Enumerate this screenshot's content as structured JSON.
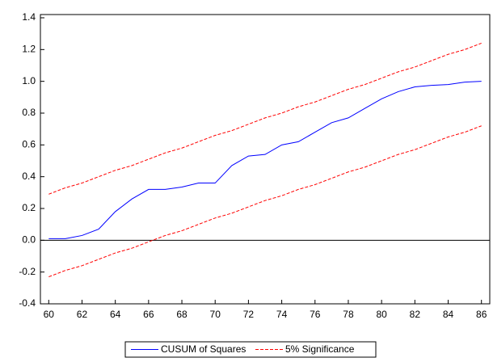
{
  "chart_data": {
    "type": "line",
    "x": [
      60,
      61,
      62,
      63,
      64,
      65,
      66,
      67,
      68,
      69,
      70,
      71,
      72,
      73,
      74,
      75,
      76,
      77,
      78,
      79,
      80,
      81,
      82,
      83,
      84,
      85,
      86
    ],
    "series": [
      {
        "name": "CUSUM of Squares",
        "color": "#0000ff",
        "values": [
          0.01,
          0.01,
          0.03,
          0.07,
          0.18,
          0.26,
          0.32,
          0.32,
          0.335,
          0.36,
          0.36,
          0.47,
          0.53,
          0.54,
          0.6,
          0.62,
          0.68,
          0.74,
          0.77,
          0.83,
          0.89,
          0.935,
          0.965,
          0.975,
          0.98,
          0.995,
          1.0
        ]
      }
    ],
    "bands": {
      "name": "5% Significance",
      "color": "#ff0000",
      "upper": [
        0.29,
        0.33,
        0.36,
        0.4,
        0.44,
        0.47,
        0.51,
        0.55,
        0.58,
        0.62,
        0.66,
        0.69,
        0.73,
        0.77,
        0.8,
        0.84,
        0.87,
        0.91,
        0.95,
        0.98,
        1.02,
        1.06,
        1.09,
        1.13,
        1.17,
        1.2,
        1.24
      ],
      "lower": [
        -0.23,
        -0.19,
        -0.16,
        -0.12,
        -0.08,
        -0.05,
        -0.01,
        0.03,
        0.06,
        0.1,
        0.14,
        0.17,
        0.21,
        0.25,
        0.28,
        0.32,
        0.35,
        0.39,
        0.43,
        0.46,
        0.5,
        0.54,
        0.57,
        0.61,
        0.65,
        0.68,
        0.72
      ]
    },
    "xlim": [
      59.5,
      86.5
    ],
    "xticks": [
      60,
      62,
      64,
      66,
      68,
      70,
      72,
      74,
      76,
      78,
      80,
      82,
      84,
      86
    ],
    "ylim": [
      -0.4,
      1.4
    ],
    "yticks": [
      -0.4,
      -0.2,
      {
        "value": 0,
        "label": "0.0"
      },
      0.2,
      0.4,
      0.6,
      0.8,
      {
        "value": 1,
        "label": "1.0"
      },
      1.2,
      1.4
    ],
    "zero_line": true,
    "legend": "bottom"
  }
}
